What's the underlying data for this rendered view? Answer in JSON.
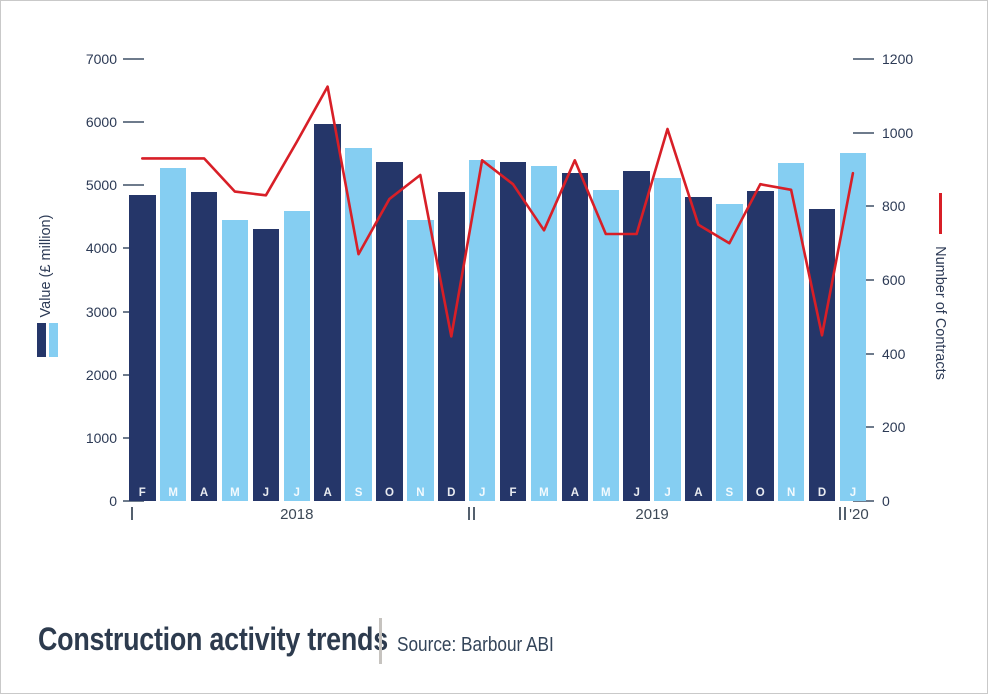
{
  "chart_data": {
    "type": "bar",
    "title": "Construction activity trends",
    "categories": [
      "F",
      "M",
      "A",
      "M",
      "J",
      "J",
      "A",
      "S",
      "O",
      "N",
      "D",
      "J",
      "F",
      "M",
      "A",
      "M",
      "J",
      "J",
      "A",
      "S",
      "O",
      "N",
      "D",
      "J"
    ],
    "x_axis": {
      "years": [
        {
          "label": "2018",
          "start": 0,
          "end": 10,
          "separator": "|"
        },
        {
          "label": "2019",
          "start": 11,
          "end": 22,
          "separator": "||"
        },
        {
          "label": "'20",
          "start": 23,
          "end": 23,
          "separator": "||"
        }
      ]
    },
    "series": [
      {
        "name": "Value (£ million)",
        "type": "bar",
        "axis": "left",
        "values": [
          4850,
          5270,
          4900,
          4450,
          4300,
          4600,
          5970,
          5590,
          5370,
          4450,
          4900,
          5400,
          5370,
          5300,
          5200,
          4930,
          5220,
          5120,
          4820,
          4700,
          4910,
          5350,
          4620,
          5510
        ]
      },
      {
        "name": "Number of Contracts",
        "type": "line",
        "axis": "right",
        "values": [
          930,
          930,
          930,
          840,
          830,
          975,
          1125,
          670,
          820,
          885,
          447,
          925,
          860,
          735,
          925,
          725,
          725,
          1010,
          750,
          700,
          860,
          845,
          450,
          890
        ]
      }
    ],
    "left_axis": {
      "label": "Value (£ million)",
      "min": 0,
      "max": 7000,
      "step": 1000
    },
    "right_axis": {
      "label": "Number of Contracts",
      "min": 0,
      "max": 1200,
      "step": 200
    },
    "legend_position": "sides",
    "grid": false,
    "colors": {
      "bar_dark": "#253669",
      "bar_light": "#85cef2",
      "line": "#d81f27"
    }
  },
  "footer": {
    "title": "Construction activity trends",
    "source": "Source: Barbour ABI"
  }
}
